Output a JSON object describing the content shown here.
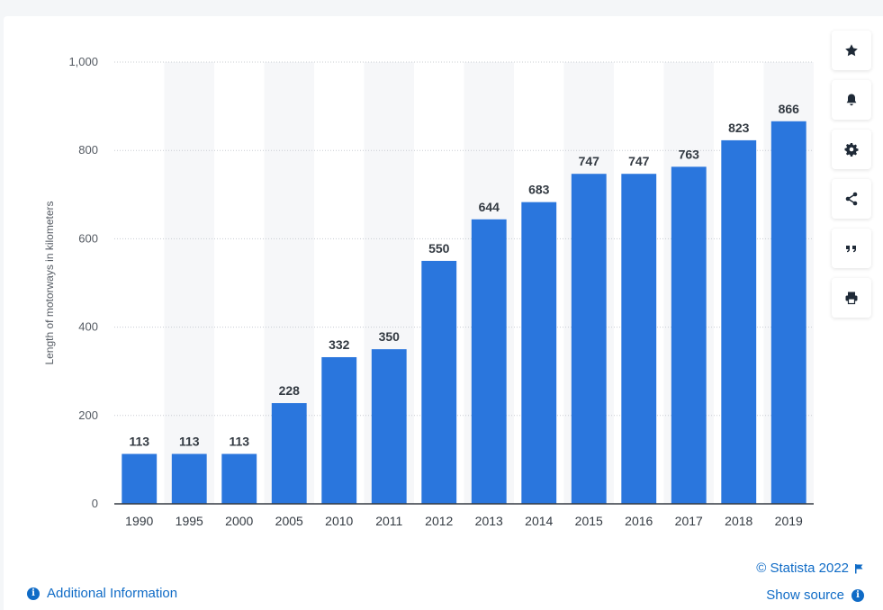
{
  "chart_data": {
    "type": "bar",
    "categories": [
      "1990",
      "1995",
      "2000",
      "2005",
      "2010",
      "2011",
      "2012",
      "2013",
      "2014",
      "2015",
      "2016",
      "2017",
      "2018",
      "2019"
    ],
    "values": [
      113,
      113,
      113,
      228,
      332,
      350,
      550,
      644,
      683,
      747,
      747,
      763,
      823,
      866
    ],
    "title": "",
    "xlabel": "",
    "ylabel": "Length of motorways in kilometers",
    "ylim": [
      0,
      1000
    ],
    "yticks": [
      0,
      200,
      400,
      600,
      800,
      1000
    ],
    "ytick_labels": [
      "0",
      "200",
      "400",
      "600",
      "800",
      "1,000"
    ],
    "grid": true,
    "bar_color": "#2a76dd",
    "data_labels": true
  },
  "toolbar": {
    "items": [
      {
        "name": "star-icon"
      },
      {
        "name": "bell-icon"
      },
      {
        "name": "gear-icon"
      },
      {
        "name": "share-icon"
      },
      {
        "name": "quote-icon"
      },
      {
        "name": "print-icon"
      }
    ]
  },
  "footer": {
    "additional_info": "Additional Information",
    "credit": "© Statista 2022",
    "show_source": "Show source"
  },
  "colors": {
    "link": "#0f6bc6",
    "bar": "#2a76dd",
    "band": "#f6f7f9"
  }
}
